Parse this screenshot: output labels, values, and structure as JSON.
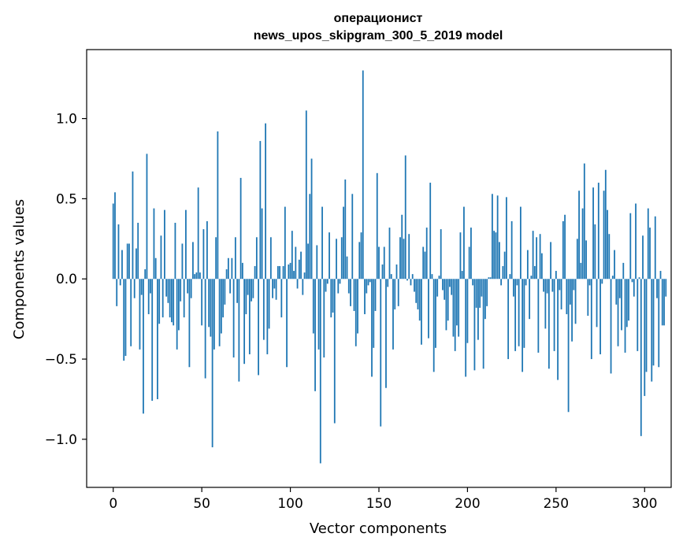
{
  "chart_data": {
    "type": "bar",
    "title_line1": "операционист",
    "title_line2": "news_upos_skipgram_300_5_2019 model",
    "xlabel": "Vector components",
    "ylabel": "Components values",
    "xlim": [
      -15,
      315
    ],
    "ylim": [
      -1.3,
      1.43
    ],
    "xticks": [
      0,
      50,
      100,
      150,
      200,
      250,
      300
    ],
    "yticks": [
      -1.0,
      -0.5,
      0.0,
      0.5,
      1.0
    ],
    "xtick_labels": [
      "0",
      "50",
      "100",
      "150",
      "200",
      "250",
      "300"
    ],
    "ytick_labels": [
      "−1.0",
      "−0.5",
      "0.0",
      "0.5",
      "1.0"
    ],
    "bar_color": "#1f77b4",
    "values": [
      0.47,
      0.54,
      -0.17,
      0.34,
      -0.04,
      0.18,
      -0.51,
      -0.48,
      0.22,
      0.22,
      -0.42,
      0.67,
      -0.12,
      0.19,
      0.35,
      -0.44,
      -0.1,
      -0.84,
      0.06,
      0.78,
      -0.22,
      -0.09,
      -0.76,
      0.44,
      0.13,
      -0.75,
      -0.28,
      0.27,
      -0.24,
      0.43,
      -0.11,
      -0.15,
      -0.24,
      -0.27,
      -0.29,
      0.35,
      -0.44,
      -0.32,
      -0.14,
      0.22,
      -0.24,
      0.43,
      -0.09,
      -0.55,
      -0.12,
      0.23,
      0.03,
      0.04,
      0.57,
      0.04,
      -0.29,
      0.31,
      -0.62,
      0.36,
      -0.3,
      -0.36,
      -1.05,
      -0.44,
      0.26,
      0.92,
      -0.42,
      -0.34,
      -0.24,
      -0.16,
      0.06,
      0.13,
      -0.09,
      0.13,
      -0.49,
      0.26,
      -0.15,
      -0.64,
      0.63,
      0.1,
      -0.53,
      -0.22,
      -0.1,
      -0.47,
      -0.14,
      -0.12,
      0.08,
      0.26,
      -0.6,
      0.86,
      0.44,
      -0.38,
      0.97,
      -0.47,
      -0.31,
      0.26,
      -0.12,
      -0.06,
      -0.13,
      0.08,
      0.08,
      -0.24,
      0.08,
      0.45,
      -0.55,
      0.09,
      0.1,
      0.3,
      0.05,
      0.2,
      -0.06,
      0.12,
      0.17,
      -0.1,
      0.04,
      1.05,
      0.22,
      0.53,
      0.75,
      -0.34,
      -0.7,
      0.21,
      -0.44,
      -1.15,
      0.45,
      -0.49,
      -0.08,
      -0.03,
      0.29,
      -0.24,
      -0.21,
      -0.9,
      0.25,
      -0.09,
      -0.03,
      0.26,
      0.45,
      0.62,
      0.14,
      -0.09,
      -0.17,
      0.53,
      -0.2,
      -0.42,
      -0.34,
      0.23,
      0.29,
      1.3,
      -0.22,
      -0.09,
      -0.04,
      -0.02,
      -0.61,
      -0.43,
      -0.2,
      0.66,
      0.2,
      -0.92,
      0.09,
      0.2,
      -0.68,
      -0.05,
      0.32,
      0.03,
      -0.44,
      -0.19,
      0.09,
      -0.17,
      0.26,
      0.4,
      0.25,
      0.77,
      -0.01,
      0.28,
      -0.04,
      0.03,
      -0.08,
      -0.15,
      -0.19,
      -0.26,
      -0.41,
      0.2,
      0.17,
      0.32,
      -0.37,
      0.6,
      0.03,
      -0.58,
      -0.43,
      -0.11,
      0.02,
      0.31,
      -0.07,
      -0.13,
      -0.32,
      -0.26,
      -0.05,
      -0.1,
      -0.36,
      -0.45,
      -0.29,
      -0.36,
      0.29,
      0.05,
      0.45,
      -0.61,
      -0.4,
      0.2,
      0.32,
      -0.04,
      -0.57,
      -0.18,
      -0.38,
      -0.18,
      -0.11,
      -0.56,
      -0.25,
      -0.17,
      0.01,
      0.01,
      0.53,
      0.3,
      0.29,
      0.52,
      0.23,
      -0.04,
      0.08,
      0.17,
      0.51,
      -0.5,
      0.03,
      0.36,
      -0.11,
      -0.45,
      -0.04,
      -0.42,
      0.45,
      -0.58,
      -0.43,
      -0.04,
      0.18,
      -0.25,
      0.02,
      0.3,
      0.08,
      0.26,
      -0.46,
      0.28,
      0.16,
      -0.08,
      -0.31,
      -0.09,
      -0.56,
      0.23,
      -0.08,
      -0.45,
      0.05,
      -0.63,
      -0.07,
      -0.19,
      0.36,
      0.4,
      -0.22,
      -0.83,
      -0.16,
      -0.39,
      -0.07,
      -0.28,
      0.25,
      0.55,
      0.1,
      0.44,
      0.72,
      0.24,
      -0.23,
      -0.04,
      -0.5,
      0.57,
      0.34,
      -0.3,
      0.6,
      -0.47,
      -0.03,
      0.55,
      0.68,
      0.43,
      0.28,
      -0.59,
      0.02,
      0.18,
      -0.16,
      -0.42,
      -0.12,
      -0.32,
      0.1,
      -0.46,
      -0.3,
      -0.26,
      0.41,
      -0.02,
      -0.11,
      0.47,
      -0.45,
      0.01,
      -0.98,
      0.27,
      -0.73,
      -0.58,
      0.44,
      0.32,
      -0.64,
      -0.54,
      0.39,
      -0.12,
      -0.55,
      0.05,
      -0.29,
      -0.29,
      -0.11
    ]
  }
}
